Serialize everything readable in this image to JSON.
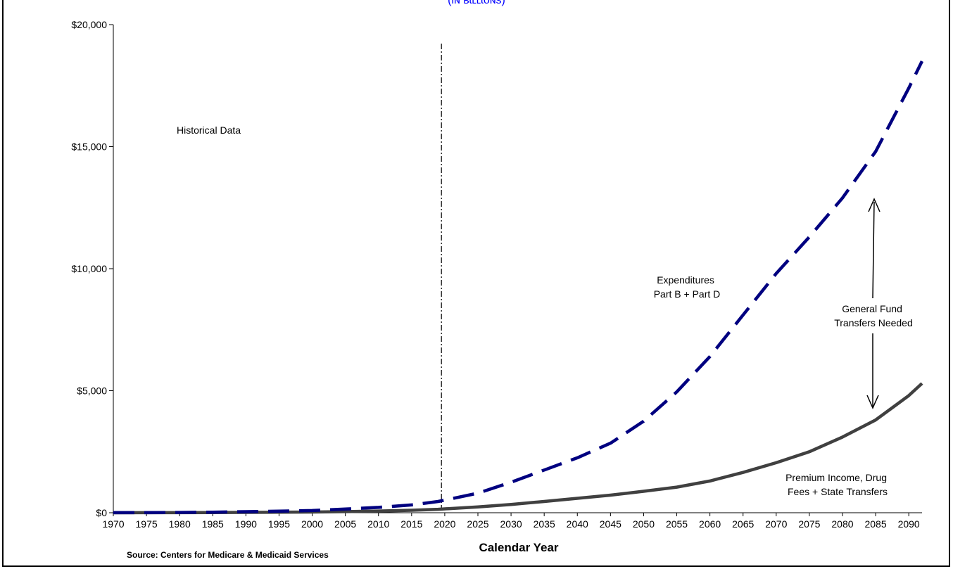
{
  "chart_data": {
    "type": "line",
    "top_title_fragment": "(Ɩɴ ʙɩʟʟɩoɴs)",
    "xlabel": "Calendar Year",
    "ylabel": "",
    "source": "Source: Centers for Medicare & Medicaid Services",
    "xlim": [
      1970,
      2092
    ],
    "ylim": [
      0,
      20000
    ],
    "x_ticks": [
      "1970",
      "1975",
      "1980",
      "1985",
      "1990",
      "1995",
      "2000",
      "2005",
      "2010",
      "2015",
      "2020",
      "2025",
      "2030",
      "2035",
      "2040",
      "2045",
      "2050",
      "2055",
      "2060",
      "2065",
      "2070",
      "2075",
      "2080",
      "2085",
      "2090"
    ],
    "y_ticks": [
      "$0",
      "$5,000",
      "$10,000",
      "$15,000",
      "$20,000"
    ],
    "y_tick_values": [
      0,
      5000,
      10000,
      15000,
      20000
    ],
    "divider_year": 2019.5,
    "grid": false,
    "series": [
      {
        "key": "expenditures",
        "style": "dashed",
        "color": "#000080",
        "x": [
          1970,
          1975,
          1980,
          1985,
          1990,
          1995,
          2000,
          2005,
          2010,
          2015,
          2019,
          2025,
          2030,
          2035,
          2040,
          2045,
          2050,
          2055,
          2060,
          2065,
          2070,
          2075,
          2080,
          2085,
          2090,
          2092
        ],
        "values": [
          2,
          4,
          11,
          23,
          44,
          66,
          90,
          150,
          220,
          320,
          460,
          800,
          1250,
          1750,
          2250,
          2850,
          3750,
          4950,
          6400,
          8100,
          9800,
          11300,
          12900,
          14800,
          17400,
          18500
        ]
      },
      {
        "key": "income",
        "style": "solid",
        "color": "#404040",
        "x": [
          1970,
          1975,
          1980,
          1985,
          1990,
          1995,
          2000,
          2005,
          2010,
          2015,
          2019,
          2025,
          2030,
          2035,
          2040,
          2045,
          2050,
          2055,
          2060,
          2065,
          2070,
          2075,
          2080,
          2085,
          2090,
          2092
        ],
        "values": [
          1,
          2,
          4,
          8,
          14,
          20,
          28,
          45,
          70,
          100,
          140,
          240,
          340,
          460,
          590,
          720,
          880,
          1050,
          1300,
          1650,
          2050,
          2500,
          3100,
          3800,
          4800,
          5300
        ]
      }
    ],
    "annotations": [
      {
        "key": "historical",
        "lines": [
          "Historical Data"
        ]
      },
      {
        "key": "expenditures",
        "lines": [
          "Expenditures",
          "Part B + Part D"
        ]
      },
      {
        "key": "gap",
        "lines": [
          "General Fund",
          "Transfers Needed"
        ]
      },
      {
        "key": "income",
        "lines": [
          "Premium Income, Drug",
          "Fees + State Transfers"
        ]
      }
    ]
  }
}
